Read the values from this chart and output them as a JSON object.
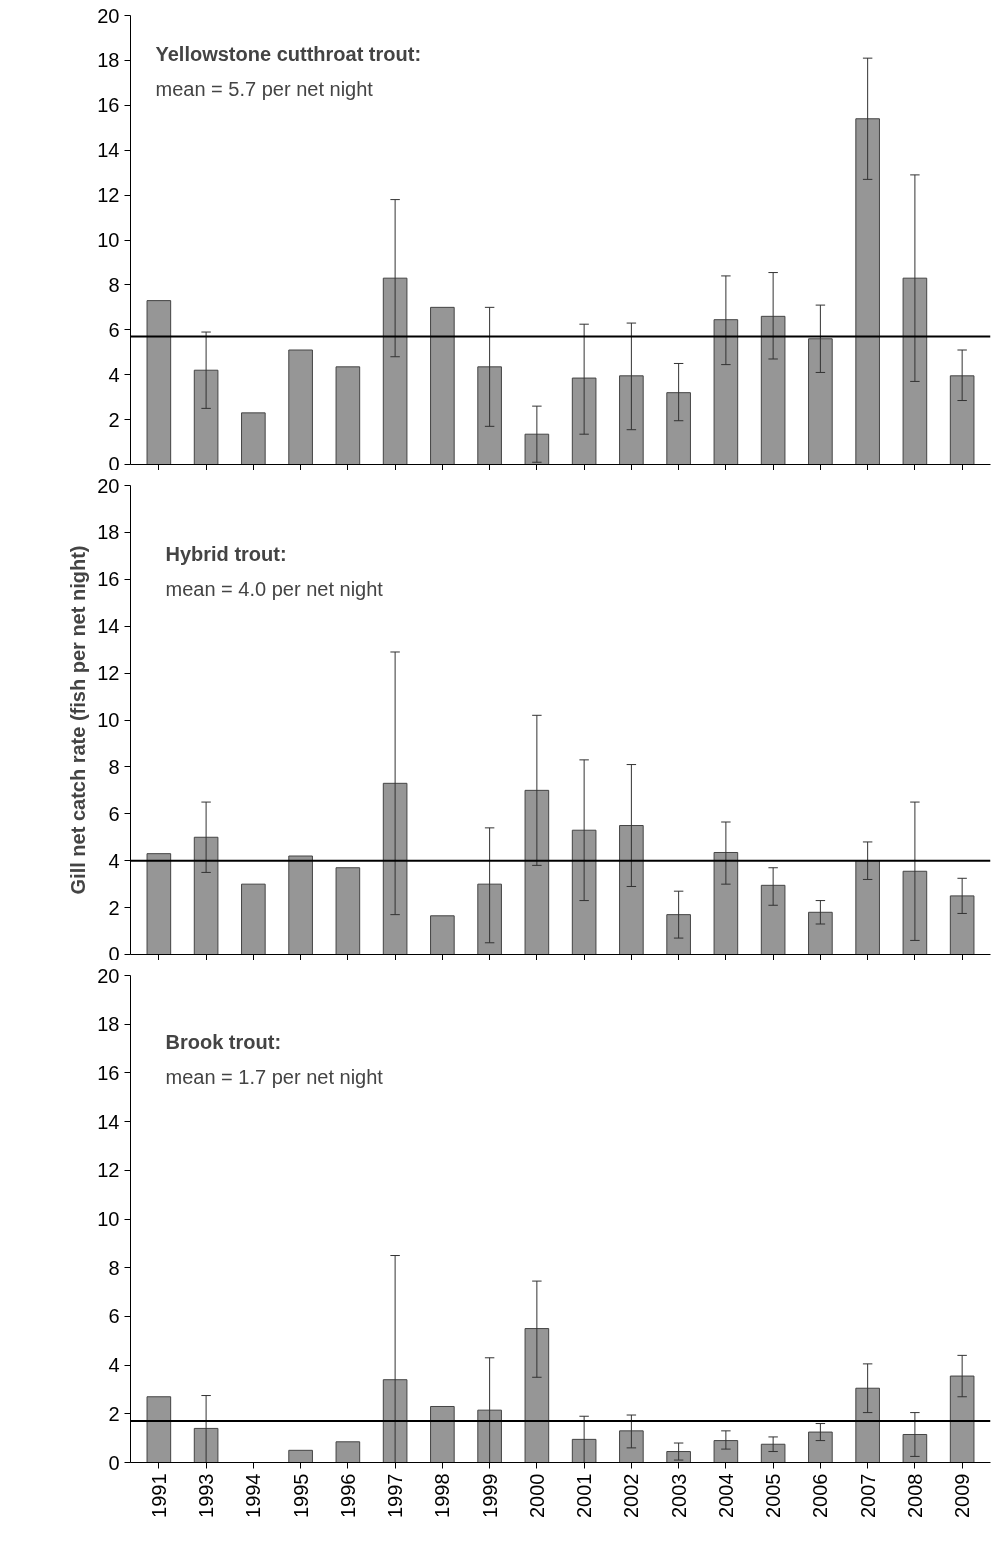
{
  "chart_data": [
    {
      "type": "bar",
      "categories": [
        "1991",
        "1993",
        "1994",
        "1995",
        "1996",
        "1997",
        "1998",
        "1999",
        "2000",
        "2001",
        "2002",
        "2003",
        "2004",
        "2005",
        "2006",
        "2007",
        "2008",
        "2009"
      ],
      "values": [
        7.3,
        4.2,
        2.3,
        5.1,
        4.35,
        8.3,
        7.0,
        4.35,
        1.35,
        3.85,
        3.95,
        3.2,
        6.45,
        6.6,
        5.6,
        15.4,
        8.3,
        3.95
      ],
      "errors": [
        null,
        [
          2.5,
          5.9
        ],
        null,
        null,
        null,
        [
          4.8,
          11.8
        ],
        null,
        [
          1.7,
          7.0
        ],
        [
          0.1,
          2.6
        ],
        [
          1.35,
          6.25
        ],
        [
          1.55,
          6.3
        ],
        [
          1.95,
          4.5
        ],
        [
          4.45,
          8.4
        ],
        [
          4.7,
          8.55
        ],
        [
          4.1,
          7.1
        ],
        [
          12.7,
          18.1
        ],
        [
          3.7,
          12.9
        ],
        [
          2.85,
          5.1
        ]
      ],
      "color": "#969696",
      "ylim": [
        0,
        20
      ],
      "yticks": [
        0,
        2,
        4,
        6,
        8,
        10,
        12,
        14,
        16,
        18,
        20
      ],
      "grid": false,
      "tick_labels": "y",
      "ref_lines": [
        {
          "axis": "y",
          "value": 5.7
        }
      ],
      "annotations": [
        "Yellowstone cutthroat trout:",
        "mean = 5.7 per net night"
      ]
    },
    {
      "type": "bar",
      "categories": [
        "1991",
        "1993",
        "1994",
        "1995",
        "1996",
        "1997",
        "1998",
        "1999",
        "2000",
        "2001",
        "2002",
        "2003",
        "2004",
        "2005",
        "2006",
        "2007",
        "2008",
        "2009"
      ],
      "values": [
        4.3,
        5.0,
        3.0,
        4.2,
        3.7,
        7.3,
        1.65,
        3.0,
        7.0,
        5.3,
        5.5,
        1.7,
        4.35,
        2.95,
        1.8,
        4.0,
        3.55,
        2.5
      ],
      "errors": [
        null,
        [
          3.5,
          6.5
        ],
        null,
        null,
        null,
        [
          1.7,
          12.9
        ],
        null,
        [
          0.5,
          5.4
        ],
        [
          3.8,
          10.2
        ],
        [
          2.3,
          8.3
        ],
        [
          2.9,
          8.1
        ],
        [
          0.7,
          2.7
        ],
        [
          3.0,
          5.65
        ],
        [
          2.1,
          3.7
        ],
        [
          1.3,
          2.3
        ],
        [
          3.2,
          4.8
        ],
        [
          0.6,
          6.5
        ],
        [
          1.75,
          3.25
        ]
      ],
      "color": "#969696",
      "ylim": [
        0,
        20
      ],
      "yticks": [
        0,
        2,
        4,
        6,
        8,
        10,
        12,
        14,
        16,
        18,
        20
      ],
      "grid": false,
      "tick_labels": "y",
      "ylabel": "Gill net catch rate (fish per net night)",
      "ref_lines": [
        {
          "axis": "y",
          "value": 4.0
        }
      ],
      "annotations": [
        "Hybrid trout:",
        "mean = 4.0 per net night"
      ]
    },
    {
      "type": "bar",
      "categories": [
        "1991",
        "1993",
        "1994",
        "1995",
        "1996",
        "1997",
        "1998",
        "1999",
        "2000",
        "2001",
        "2002",
        "2003",
        "2004",
        "2005",
        "2006",
        "2007",
        "2008",
        "2009"
      ],
      "values": [
        2.7,
        1.4,
        0,
        0.5,
        0.85,
        3.4,
        2.3,
        2.15,
        5.5,
        0.95,
        1.3,
        0.45,
        0.9,
        0.75,
        1.25,
        3.05,
        1.15,
        3.55
      ],
      "errors": [
        null,
        [
          0,
          2.75
        ],
        null,
        null,
        null,
        [
          0,
          8.5
        ],
        null,
        [
          0,
          4.3
        ],
        [
          3.5,
          7.45
        ],
        [
          0,
          1.9
        ],
        [
          0.6,
          1.95
        ],
        [
          0.1,
          0.8
        ],
        [
          0.55,
          1.3
        ],
        [
          0.45,
          1.05
        ],
        [
          0.9,
          1.6
        ],
        [
          2.05,
          4.05
        ],
        [
          0.25,
          2.05
        ],
        [
          2.7,
          4.4
        ]
      ],
      "color": "#969696",
      "ylim": [
        0,
        20
      ],
      "yticks": [
        0,
        2,
        4,
        6,
        8,
        10,
        12,
        14,
        16,
        18,
        20
      ],
      "grid": false,
      "ref_lines": [
        {
          "axis": "y",
          "value": 1.7
        }
      ],
      "annotations": [
        "Brook trout:",
        "mean = 1.7 per net night"
      ]
    }
  ]
}
